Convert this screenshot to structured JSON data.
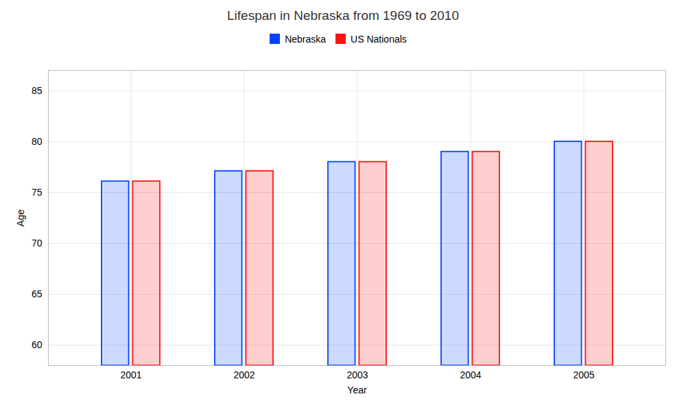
{
  "chart_data": {
    "type": "bar",
    "title": "Lifespan in Nebraska from 1969 to 2010",
    "xlabel": "Year",
    "ylabel": "Age",
    "categories": [
      "2001",
      "2002",
      "2003",
      "2004",
      "2005"
    ],
    "series": [
      {
        "name": "Nebraska",
        "color": "#0044ff",
        "values": [
          76.1,
          77.1,
          78.0,
          79.0,
          80.0
        ]
      },
      {
        "name": "US Nationals",
        "color": "#ff1111",
        "values": [
          76.1,
          77.1,
          78.0,
          79.0,
          80.0
        ]
      }
    ],
    "ylim": [
      58,
      87
    ],
    "yticks": [
      60,
      65,
      70,
      75,
      80,
      85
    ],
    "grid": true,
    "legend": "top"
  }
}
